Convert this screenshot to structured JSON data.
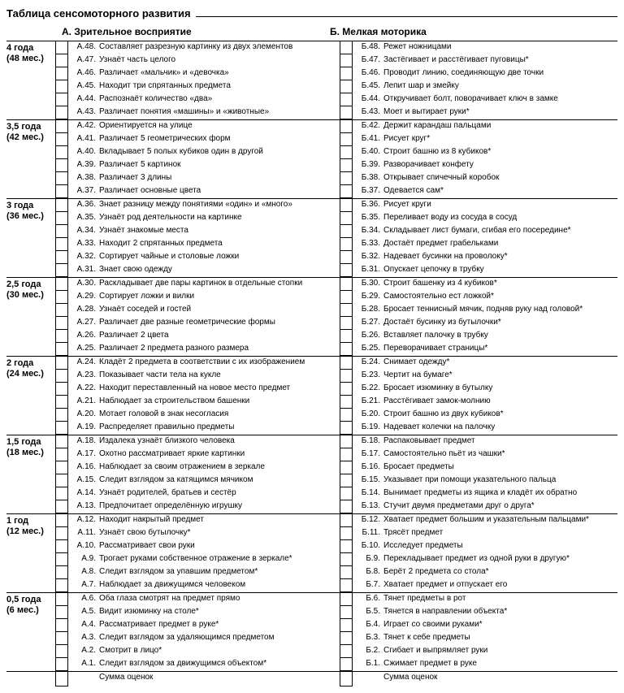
{
  "title": "Таблица сенсомоторного развития",
  "sectionA": "А.   Зрительное восприятие",
  "sectionB": "Б.   Мелкая моторика",
  "sumLabel": "Сумма оценок",
  "ageGroups": [
    {
      "label1": "4 года",
      "label2": "(48 мес.)",
      "a": [
        {
          "c": "А.48.",
          "t": "Составляет разрезную картинку из двух элементов"
        },
        {
          "c": "А.47.",
          "t": "Узнаёт часть целого"
        },
        {
          "c": "А.46.",
          "t": "Различает «мальчик» и «девочка»"
        },
        {
          "c": "А.45.",
          "t": "Находит три спрятанных предмета"
        },
        {
          "c": "А.44.",
          "t": "Распознаёт количество «два»"
        },
        {
          "c": "А.43.",
          "t": "Различает понятия «машины» и «животные»"
        }
      ],
      "b": [
        {
          "c": "Б.48.",
          "t": "Режет ножницами"
        },
        {
          "c": "Б.47.",
          "t": "Застёгивает и расстёгивает пуговицы*"
        },
        {
          "c": "Б.46.",
          "t": "Проводит линию, соединяющую две точки"
        },
        {
          "c": "Б.45.",
          "t": "Лепит шар и змейку"
        },
        {
          "c": "Б.44.",
          "t": "Откручивает болт, поворачивает ключ в замке"
        },
        {
          "c": "Б.43.",
          "t": "Моет и вытирает руки*"
        }
      ]
    },
    {
      "label1": "3,5 года",
      "label2": "(42 мес.)",
      "a": [
        {
          "c": "А.42.",
          "t": "Ориентируется на улице"
        },
        {
          "c": "А.41.",
          "t": "Различает 5 геометрических форм"
        },
        {
          "c": "А.40.",
          "t": "Вкладывает 5 полых кубиков один в другой"
        },
        {
          "c": "А.39.",
          "t": "Различает 5 картинок"
        },
        {
          "c": "А.38.",
          "t": "Различает 3 длины"
        },
        {
          "c": "А.37.",
          "t": "Различает основные цвета"
        }
      ],
      "b": [
        {
          "c": "Б.42.",
          "t": "Держит карандаш пальцами"
        },
        {
          "c": "Б.41.",
          "t": "Рисует круг*"
        },
        {
          "c": "Б.40.",
          "t": "Строит башню из 8 кубиков*"
        },
        {
          "c": "Б.39.",
          "t": "Разворачивает конфету"
        },
        {
          "c": "Б.38.",
          "t": "Открывает спичечный коробок"
        },
        {
          "c": "Б.37.",
          "t": "Одевается сам*"
        }
      ]
    },
    {
      "label1": "3 года",
      "label2": "(36 мес.)",
      "a": [
        {
          "c": "А.36.",
          "t": "Знает разницу между понятиями «один» и «много»"
        },
        {
          "c": "А.35.",
          "t": "Узнаёт род деятельности на картинке"
        },
        {
          "c": "А.34.",
          "t": "Узнаёт знакомые места"
        },
        {
          "c": "А.33.",
          "t": "Находит 2 спрятанных предмета"
        },
        {
          "c": "А.32.",
          "t": "Сортирует чайные и столовые ложки"
        },
        {
          "c": "А.31.",
          "t": "Знает свою одежду"
        }
      ],
      "b": [
        {
          "c": "Б.36.",
          "t": "Рисует круги"
        },
        {
          "c": "Б.35.",
          "t": "Переливает воду из сосуда в сосуд"
        },
        {
          "c": "Б.34.",
          "t": "Складывает лист бумаги, сгибая его посередине*"
        },
        {
          "c": "Б.33.",
          "t": "Достаёт предмет грабельками"
        },
        {
          "c": "Б.32.",
          "t": "Надевает бусинки на проволоку*"
        },
        {
          "c": "Б.31.",
          "t": "Опускает цепочку в трубку"
        }
      ]
    },
    {
      "label1": "2,5 года",
      "label2": "(30 мес.)",
      "a": [
        {
          "c": "А.30.",
          "t": "Раскладывает две пары картинок в отдельные стопки"
        },
        {
          "c": "А.29.",
          "t": "Сортирует ложки и вилки"
        },
        {
          "c": "А.28.",
          "t": "Узнаёт соседей и гостей"
        },
        {
          "c": "А.27.",
          "t": "Различает две разные геометрические формы"
        },
        {
          "c": "А.26.",
          "t": "Различает 2 цвета"
        },
        {
          "c": "А.25.",
          "t": "Различает 2 предмета разного размера"
        }
      ],
      "b": [
        {
          "c": "Б.30.",
          "t": "Строит башенку из 4 кубиков*"
        },
        {
          "c": "Б.29.",
          "t": "Самостоятельно ест ложкой*"
        },
        {
          "c": "Б.28.",
          "t": "Бросает теннисный мячик, подняв руку над головой*"
        },
        {
          "c": "Б.27.",
          "t": "Достаёт бусинку из бутылочки*"
        },
        {
          "c": "Б.26.",
          "t": "Вставляет палочку в трубку"
        },
        {
          "c": "Б.25.",
          "t": "Переворачивает страницы*"
        }
      ]
    },
    {
      "label1": "2 года",
      "label2": "(24 мес.)",
      "a": [
        {
          "c": "А.24.",
          "t": "Кладёт 2 предмета в соответствии с их изображением"
        },
        {
          "c": "А.23.",
          "t": "Показывает части тела на кукле"
        },
        {
          "c": "А.22.",
          "t": "Находит переставленный на новое место предмет"
        },
        {
          "c": "А.21.",
          "t": "Наблюдает за строительством башенки"
        },
        {
          "c": "А.20.",
          "t": "Мотает головой в знак несогласия"
        },
        {
          "c": "А.19.",
          "t": "Распределяет правильно предметы"
        }
      ],
      "b": [
        {
          "c": "Б.24.",
          "t": "Снимает одежду*"
        },
        {
          "c": "Б.23.",
          "t": "Чертит на бумаге*"
        },
        {
          "c": "Б.22.",
          "t": "Бросает изюминку в бутылку"
        },
        {
          "c": "Б.21.",
          "t": "Расстёгивает замок-молнию"
        },
        {
          "c": "Б.20.",
          "t": "Строит башню из двух кубиков*"
        },
        {
          "c": "Б.19.",
          "t": "Надевает колечки на палочку"
        }
      ]
    },
    {
      "label1": "1,5 года",
      "label2": "(18 мес.)",
      "a": [
        {
          "c": "А.18.",
          "t": "Издалека узнаёт близкого человека"
        },
        {
          "c": "А.17.",
          "t": "Охотно рассматривает яркие картинки"
        },
        {
          "c": "А.16.",
          "t": "Наблюдает за своим отражением в зеркале"
        },
        {
          "c": "А.15.",
          "t": "Следит взглядом за катящимся мячиком"
        },
        {
          "c": "А.14.",
          "t": "Узнаёт родителей, братьев и сестёр"
        },
        {
          "c": "А.13.",
          "t": "Предпочитает определённую игрушку"
        }
      ],
      "b": [
        {
          "c": "Б.18.",
          "t": "Распаковывает предмет"
        },
        {
          "c": "Б.17.",
          "t": "Самостоятельно пьёт из чашки*"
        },
        {
          "c": "Б.16.",
          "t": "Бросает предметы"
        },
        {
          "c": "Б.15.",
          "t": "Указывает при помощи указательного пальца"
        },
        {
          "c": "Б.14.",
          "t": "Вынимает предметы из ящика и кладёт их обратно"
        },
        {
          "c": "Б.13.",
          "t": "Стучит двумя предметами друг о друга*"
        }
      ]
    },
    {
      "label1": "1 год",
      "label2": "(12 мес.)",
      "a": [
        {
          "c": "А.12.",
          "t": "Находит накрытый предмет"
        },
        {
          "c": "А.11.",
          "t": "Узнаёт свою бутылочку*"
        },
        {
          "c": "А.10.",
          "t": "Рассматривает свои руки"
        },
        {
          "c": "А.9.",
          "t": "Трогает руками собственное отражение в зеркале*"
        },
        {
          "c": "А.8.",
          "t": "Следит взглядом за упавшим предметом*"
        },
        {
          "c": "А.7.",
          "t": "Наблюдает за движущимся человеком"
        }
      ],
      "b": [
        {
          "c": "Б.12.",
          "t": "Хватает предмет большим и указательным пальцами*"
        },
        {
          "c": "Б.11.",
          "t": "Трясёт предмет"
        },
        {
          "c": "Б.10.",
          "t": "Исследует предметы"
        },
        {
          "c": "Б.9.",
          "t": "Перекладывает предмет из одной руки в другую*"
        },
        {
          "c": "Б.8.",
          "t": "Берёт 2 предмета со стола*"
        },
        {
          "c": "Б.7.",
          "t": "Хватает предмет и отпускает его"
        }
      ]
    },
    {
      "label1": "0,5 года",
      "label2": "(6 мес.)",
      "a": [
        {
          "c": "А.6.",
          "t": "Оба глаза смотрят на предмет прямо"
        },
        {
          "c": "А.5.",
          "t": "Видит изюминку на столе*"
        },
        {
          "c": "А.4.",
          "t": "Рассматривает предмет в руке*"
        },
        {
          "c": "А.3.",
          "t": "Следит взглядом за удаляющимся предметом"
        },
        {
          "c": "А.2.",
          "t": "Смотрит в лицо*"
        },
        {
          "c": "А.1.",
          "t": "Следит взглядом за движущимся объектом*"
        }
      ],
      "b": [
        {
          "c": "Б.6.",
          "t": "Тянет предметы в рот"
        },
        {
          "c": "Б.5.",
          "t": "Тянется в направлении объекта*"
        },
        {
          "c": "Б.4.",
          "t": "Играет со своими руками*"
        },
        {
          "c": "Б.3.",
          "t": "Тянет к себе предметы"
        },
        {
          "c": "Б.2.",
          "t": "Сгибает и выпрямляет руки"
        },
        {
          "c": "Б.1.",
          "t": "Сжимает предмет в руке"
        }
      ]
    }
  ]
}
